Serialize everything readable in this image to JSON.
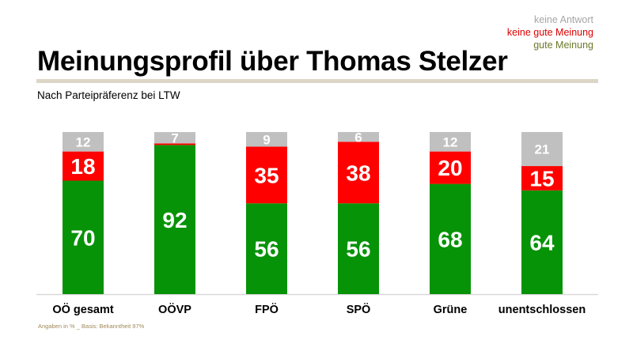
{
  "legend": {
    "items": [
      {
        "label": "keine Antwort",
        "color": "#a6a6a6"
      },
      {
        "label": "keine gute Meinung",
        "color": "#dd0000"
      },
      {
        "label": "gute Meinung",
        "color": "#6b7a2a"
      }
    ]
  },
  "header": {
    "title": "Meinungsprofil über Thomas Stelzer",
    "subtitle": "Nach Parteipräferenz bei LTW"
  },
  "footer": {
    "note": "Angaben in % _ Basis: Bekanntheit 97%"
  },
  "colors": {
    "good": "#079307",
    "bad": "#fe0000",
    "none": "#c0c0c0",
    "baseline": "#d9d9d9"
  },
  "chart_data": {
    "type": "bar",
    "stacked": true,
    "categories": [
      "OÖ gesamt",
      "OÖVP",
      "FPÖ",
      "SPÖ",
      "Grüne",
      "unentschlossen"
    ],
    "series": [
      {
        "name": "gute Meinung",
        "values": [
          70,
          92,
          56,
          56,
          68,
          64
        ]
      },
      {
        "name": "keine gute Meinung",
        "values": [
          18,
          null,
          35,
          38,
          20,
          15
        ]
      },
      {
        "name": "keine Antwort",
        "values": [
          12,
          7,
          9,
          6,
          12,
          21
        ]
      }
    ],
    "ylim": [
      0,
      100
    ],
    "grid": false,
    "legend_position": "top-right"
  }
}
